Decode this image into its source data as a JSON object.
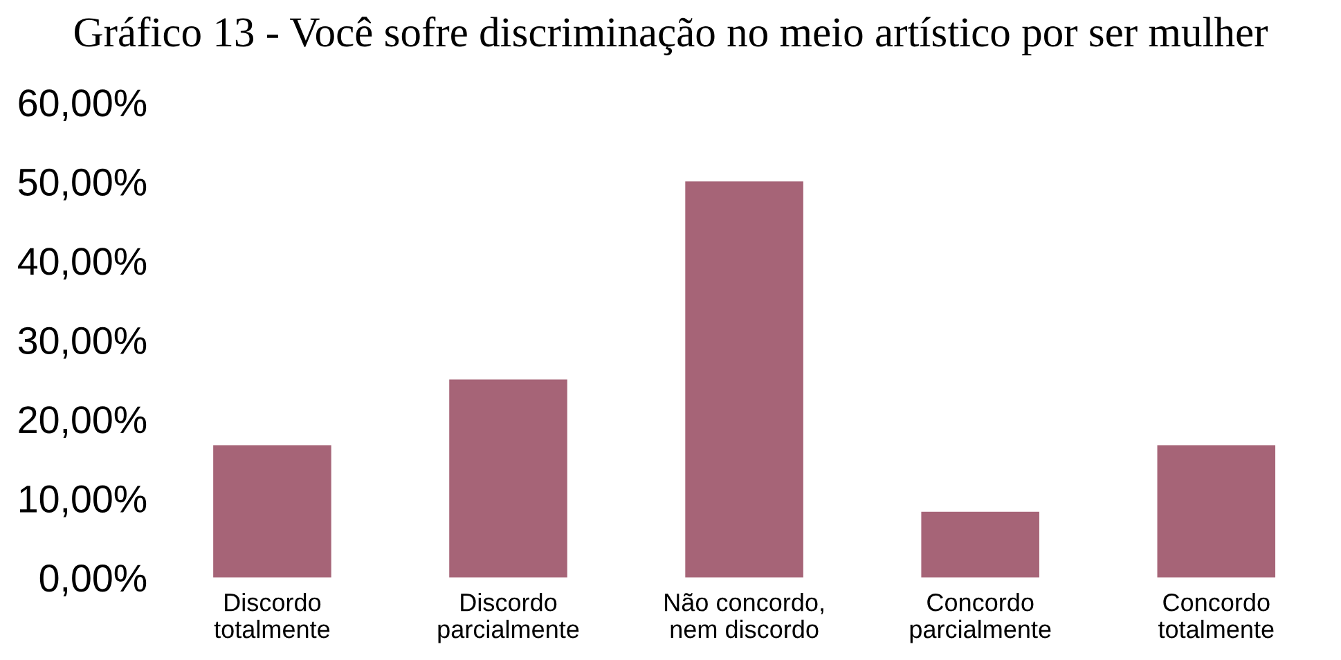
{
  "chart_data": {
    "type": "bar",
    "title": "Gráfico 13 - Você sofre discriminação no meio artístico por ser mulher",
    "categories": [
      "Discordo\ntotalmente",
      "Discordo\nparcialmente",
      "Não concordo,\nnem discordo",
      "Concordo\nparcialmente",
      "Concordo\ntotalmente"
    ],
    "values": [
      16.7,
      25,
      50,
      8.3,
      16.7
    ],
    "color": "#a66477",
    "ylim": [
      0,
      60
    ],
    "yticks": [
      {
        "value": 0,
        "label": "0,00%"
      },
      {
        "value": 10,
        "label": "10,00%"
      },
      {
        "value": 20,
        "label": "20,00%"
      },
      {
        "value": 30,
        "label": "30,00%"
      },
      {
        "value": 40,
        "label": "40,00%"
      },
      {
        "value": 50,
        "label": "50,00%"
      },
      {
        "value": 60,
        "label": "60,00%"
      }
    ],
    "grid": false,
    "legend": false
  }
}
